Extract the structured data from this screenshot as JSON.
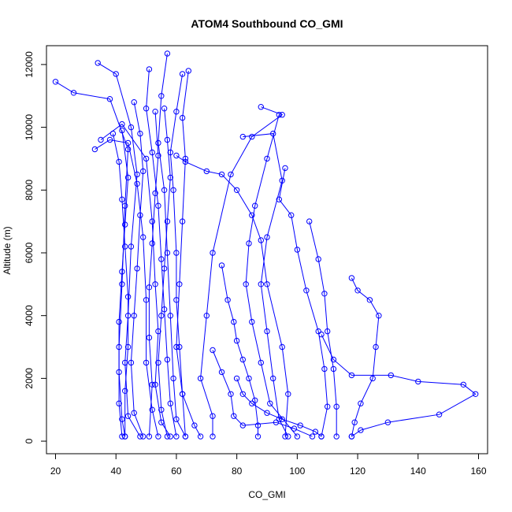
{
  "chart_data": {
    "type": "scatter",
    "title": "ATOM4 Southbound CO_GMI",
    "xlabel": "CO_GMI",
    "ylabel": "Altitude (m)",
    "xlim": [
      17,
      163
    ],
    "ylim": [
      -400,
      12600
    ],
    "x_ticks": [
      20,
      40,
      60,
      80,
      100,
      120,
      140,
      160
    ],
    "x_tick_labels": [
      "20",
      "40",
      "60",
      "80",
      "100",
      "120",
      "140",
      "160"
    ],
    "y_ticks": [
      0,
      2000,
      4000,
      6000,
      8000,
      10000,
      12000
    ],
    "y_tick_labels": [
      "0",
      "2000",
      "4000",
      "6000",
      "8000",
      "10000",
      "12000"
    ],
    "grid": false,
    "legend": "none",
    "marker": "open-circle",
    "line_color": "#0000ff",
    "series": [
      {
        "values": [
          [
            20,
            11450
          ],
          [
            26,
            11100
          ],
          [
            38,
            10900
          ],
          [
            44,
            9300
          ],
          [
            43,
            7500
          ],
          [
            42,
            5000
          ],
          [
            41,
            3000
          ],
          [
            41,
            1200
          ],
          [
            42,
            150
          ]
        ]
      },
      {
        "values": [
          [
            34,
            12050
          ],
          [
            40,
            11700
          ],
          [
            45,
            10000
          ],
          [
            47,
            8500
          ],
          [
            45,
            6200
          ],
          [
            44,
            4000
          ],
          [
            43,
            2500
          ],
          [
            44,
            800
          ],
          [
            48,
            150
          ]
        ]
      },
      {
        "values": [
          [
            33,
            9300
          ],
          [
            38,
            9600
          ],
          [
            44,
            9500
          ],
          [
            47,
            8200
          ],
          [
            49,
            6500
          ],
          [
            50,
            4500
          ],
          [
            50,
            2500
          ],
          [
            52,
            1000
          ],
          [
            54,
            150
          ]
        ]
      },
      {
        "values": [
          [
            35,
            9600
          ],
          [
            42,
            10100
          ],
          [
            50,
            9000
          ],
          [
            52,
            7000
          ],
          [
            53,
            5000
          ],
          [
            54,
            3500
          ],
          [
            53,
            1800
          ],
          [
            55,
            600
          ],
          [
            58,
            150
          ]
        ]
      },
      {
        "values": [
          [
            57,
            12350
          ],
          [
            55,
            11000
          ],
          [
            54,
            9500
          ],
          [
            56,
            8000
          ],
          [
            57,
            6000
          ],
          [
            58,
            4000
          ],
          [
            59,
            2000
          ],
          [
            60,
            700
          ],
          [
            63,
            150
          ]
        ]
      },
      {
        "values": [
          [
            51,
            11850
          ],
          [
            50,
            10600
          ],
          [
            52,
            9200
          ],
          [
            54,
            7500
          ],
          [
            55,
            5800
          ],
          [
            56,
            4200
          ],
          [
            57,
            2600
          ],
          [
            58,
            1200
          ],
          [
            60,
            150
          ]
        ]
      },
      {
        "values": [
          [
            62,
            11700
          ],
          [
            60,
            10500
          ],
          [
            58,
            9200
          ],
          [
            59,
            8000
          ],
          [
            60,
            6000
          ],
          [
            60,
            4500
          ],
          [
            61,
            3000
          ],
          [
            62,
            1500
          ],
          [
            63,
            150
          ]
        ]
      },
      {
        "values": [
          [
            64,
            11800
          ],
          [
            62,
            10300
          ],
          [
            63,
            9000
          ],
          [
            62,
            7000
          ],
          [
            61,
            5000
          ],
          [
            60,
            3000
          ],
          [
            62,
            1500
          ],
          [
            66,
            500
          ],
          [
            68,
            150
          ]
        ]
      },
      {
        "values": [
          [
            46,
            10800
          ],
          [
            48,
            9800
          ],
          [
            49,
            8600
          ],
          [
            48,
            7200
          ],
          [
            47,
            5500
          ],
          [
            46,
            4000
          ],
          [
            45,
            2500
          ],
          [
            46,
            900
          ],
          [
            49,
            150
          ]
        ]
      },
      {
        "values": [
          [
            56,
            10600
          ],
          [
            57,
            9600
          ],
          [
            58,
            8400
          ],
          [
            57,
            7000
          ],
          [
            56,
            5500
          ],
          [
            55,
            4000
          ],
          [
            54,
            2500
          ],
          [
            55,
            1000
          ],
          [
            57,
            150
          ]
        ]
      },
      {
        "values": [
          [
            88,
            10650
          ],
          [
            95,
            10400
          ],
          [
            85,
            9700
          ],
          [
            78,
            8500
          ],
          [
            72,
            6000
          ],
          [
            70,
            4000
          ],
          [
            68,
            2000
          ],
          [
            72,
            800
          ],
          [
            72,
            150
          ]
        ]
      },
      {
        "values": [
          [
            82,
            9700
          ],
          [
            92,
            9800
          ],
          [
            95,
            8300
          ],
          [
            90,
            6500
          ],
          [
            88,
            5000
          ],
          [
            90,
            3500
          ],
          [
            92,
            2000
          ],
          [
            94,
            700
          ],
          [
            97,
            150
          ]
        ]
      },
      {
        "values": [
          [
            94,
            10400
          ],
          [
            90,
            9000
          ],
          [
            86,
            7500
          ],
          [
            84,
            6300
          ],
          [
            83,
            5000
          ],
          [
            85,
            3800
          ],
          [
            88,
            2500
          ],
          [
            91,
            1200
          ],
          [
            100,
            150
          ]
        ]
      },
      {
        "values": [
          [
            96,
            8700
          ],
          [
            94,
            7700
          ],
          [
            98,
            7200
          ],
          [
            100,
            6100
          ],
          [
            103,
            4800
          ],
          [
            107,
            3500
          ],
          [
            109,
            2300
          ],
          [
            110,
            1100
          ],
          [
            108,
            150
          ]
        ]
      },
      {
        "values": [
          [
            104,
            7000
          ],
          [
            107,
            5800
          ],
          [
            109,
            4700
          ],
          [
            110,
            3500
          ],
          [
            112,
            2300
          ],
          [
            113,
            1100
          ],
          [
            113,
            150
          ]
        ]
      },
      {
        "values": [
          [
            118,
            5200
          ],
          [
            120,
            4800
          ],
          [
            124,
            4500
          ],
          [
            127,
            4000
          ],
          [
            126,
            3000
          ],
          [
            125,
            2000
          ],
          [
            121,
            1200
          ],
          [
            119,
            600
          ],
          [
            118,
            150
          ]
        ]
      },
      {
        "values": [
          [
            80,
            2000
          ],
          [
            82,
            1500
          ],
          [
            85,
            1200
          ],
          [
            90,
            900
          ],
          [
            95,
            700
          ],
          [
            101,
            500
          ],
          [
            106,
            300
          ],
          [
            108,
            150
          ]
        ]
      },
      {
        "values": [
          [
            108,
            3400
          ],
          [
            112,
            2600
          ],
          [
            118,
            2100
          ],
          [
            131,
            2100
          ],
          [
            140,
            1900
          ],
          [
            155,
            1800
          ],
          [
            159,
            1500
          ],
          [
            147,
            850
          ],
          [
            130,
            600
          ],
          [
            121,
            350
          ],
          [
            118,
            150
          ]
        ]
      },
      {
        "values": [
          [
            72,
            2900
          ],
          [
            75,
            2200
          ],
          [
            78,
            1500
          ],
          [
            79,
            800
          ],
          [
            82,
            500
          ],
          [
            93,
            600
          ],
          [
            99,
            400
          ],
          [
            105,
            150
          ]
        ]
      },
      {
        "values": [
          [
            75,
            5600
          ],
          [
            77,
            4500
          ],
          [
            79,
            3800
          ],
          [
            80,
            3200
          ],
          [
            82,
            2600
          ],
          [
            84,
            2000
          ],
          [
            86,
            1300
          ],
          [
            87,
            500
          ],
          [
            87,
            150
          ]
        ]
      },
      {
        "values": [
          [
            60,
            9100
          ],
          [
            63,
            8900
          ],
          [
            70,
            8600
          ],
          [
            75,
            8500
          ],
          [
            80,
            8000
          ],
          [
            85,
            7200
          ],
          [
            88,
            6400
          ],
          [
            90,
            5000
          ],
          [
            95,
            3000
          ],
          [
            97,
            1500
          ],
          [
            96,
            150
          ]
        ]
      },
      {
        "values": [
          [
            42,
            9900
          ],
          [
            44,
            8400
          ],
          [
            43,
            6900
          ],
          [
            42,
            5400
          ],
          [
            41,
            3800
          ],
          [
            41,
            2200
          ],
          [
            42,
            700
          ],
          [
            43,
            150
          ]
        ]
      },
      {
        "values": [
          [
            39,
            9800
          ],
          [
            41,
            8900
          ],
          [
            42,
            7700
          ],
          [
            43,
            6200
          ],
          [
            44,
            4600
          ],
          [
            44,
            3000
          ],
          [
            43,
            1600
          ],
          [
            43,
            150
          ]
        ]
      },
      {
        "values": [
          [
            53,
            10500
          ],
          [
            54,
            9100
          ],
          [
            53,
            7900
          ],
          [
            52,
            6300
          ],
          [
            51,
            4900
          ],
          [
            51,
            3300
          ],
          [
            52,
            1800
          ],
          [
            51,
            150
          ]
        ]
      }
    ]
  }
}
